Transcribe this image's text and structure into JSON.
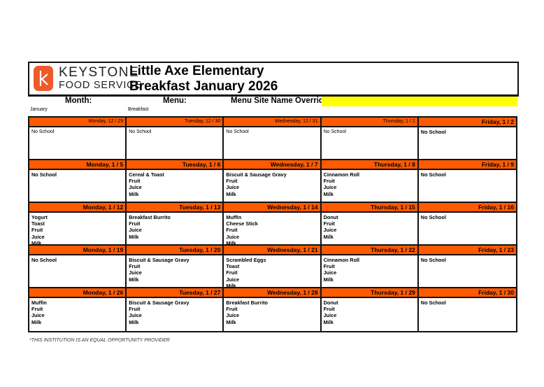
{
  "header": {
    "brand_line1": "KEYSTONE",
    "brand_line2": "FOOD SERVICE",
    "school": "Little Axe Elementary",
    "title": "Breakfast January 2026",
    "logo_color": "#ee5a2a"
  },
  "fields": {
    "month_label": "Month:",
    "month_value": "January",
    "menu_label": "Menu:",
    "menu_value": "Breakfast",
    "override_label": "Menu Site Name Override:",
    "override_value": ""
  },
  "colors": {
    "day_header": "#ff5a00",
    "override_highlight": "#ffff00"
  },
  "weeks": [
    [
      {
        "day": "Monday, 12 / 29",
        "items": [
          "No School"
        ],
        "outside": true
      },
      {
        "day": "Tuesday, 12 / 30",
        "items": [
          "No School"
        ],
        "outside": true
      },
      {
        "day": "Wednesday, 12 / 31",
        "items": [
          "No School"
        ],
        "outside": true
      },
      {
        "day": "Thursday, 1 / 1",
        "items": [
          "No School"
        ],
        "outside": true
      },
      {
        "day": "Friday, 1 / 2",
        "items": [
          "No School"
        ]
      }
    ],
    [
      {
        "day": "Monday, 1 / 5",
        "items": [
          "No School"
        ]
      },
      {
        "day": "Tuesday, 1 / 6",
        "items": [
          "Cereal & Toast",
          "Fruit",
          "Juice",
          "Milk"
        ]
      },
      {
        "day": "Wednesday, 1 / 7",
        "items": [
          "Biscuit & Sausage Gravy",
          "Fruit",
          "Juice",
          "Milk"
        ]
      },
      {
        "day": "Thursday, 1 / 8",
        "items": [
          "Cinnamon Roll",
          "Fruit",
          "Juice",
          "Milk"
        ]
      },
      {
        "day": "Friday, 1 / 9",
        "items": [
          "No School"
        ]
      }
    ],
    [
      {
        "day": "Monday, 1 / 12",
        "items": [
          "Yogurt",
          "Toast",
          "Fruit",
          "Juice",
          "Milk"
        ]
      },
      {
        "day": "Tuesday, 1 / 13",
        "items": [
          "Breakfast Burrito",
          "Fruit",
          "Juice",
          "Milk"
        ]
      },
      {
        "day": "Wednesday, 1 / 14",
        "items": [
          "Muffin",
          "Cheese Stick",
          "Fruit",
          "Juice",
          "Milk"
        ]
      },
      {
        "day": "Thursday, 1 / 15",
        "items": [
          "Donut",
          "Fruit",
          "Juice",
          "Milk"
        ]
      },
      {
        "day": "Friday, 1 / 16",
        "items": [
          "No School"
        ]
      }
    ],
    [
      {
        "day": "Monday, 1 / 19",
        "items": [
          "No School"
        ]
      },
      {
        "day": "Tuesday, 1 / 20",
        "items": [
          "Biscuit & Sausage Gravy",
          "Fruit",
          "Juice",
          "Milk"
        ]
      },
      {
        "day": "Wednesday, 1 / 21",
        "items": [
          "Scrambled Eggs",
          "Toast",
          "Fruit",
          "Juice",
          "Milk"
        ]
      },
      {
        "day": "Thursday, 1 / 22",
        "items": [
          "Cinnamon Roll",
          "Fruit",
          "Juice",
          "Milk"
        ]
      },
      {
        "day": "Friday, 1 / 23",
        "items": [
          "No School"
        ]
      }
    ],
    [
      {
        "day": "Monday, 1 / 26",
        "items": [
          "Muffin",
          "Fruit",
          "Juice",
          "Milk"
        ]
      },
      {
        "day": "Tuesday, 1 / 27",
        "items": [
          "Biscuit & Sausage Gravy",
          "Fruit",
          "Juice",
          "Milk"
        ]
      },
      {
        "day": "Wednesday, 1 / 28",
        "items": [
          "Breakfast Burrito",
          "Fruit",
          "Juice",
          "Milk"
        ]
      },
      {
        "day": "Thursday, 1 / 29",
        "items": [
          "Donut",
          "Fruit",
          "Juice",
          "Milk"
        ]
      },
      {
        "day": "Friday, 1 / 30",
        "items": [
          "No School"
        ]
      }
    ]
  ],
  "footer": "*THIS INSTITUTION IS AN EQUAL OPPORTUNITY PROVIDER"
}
